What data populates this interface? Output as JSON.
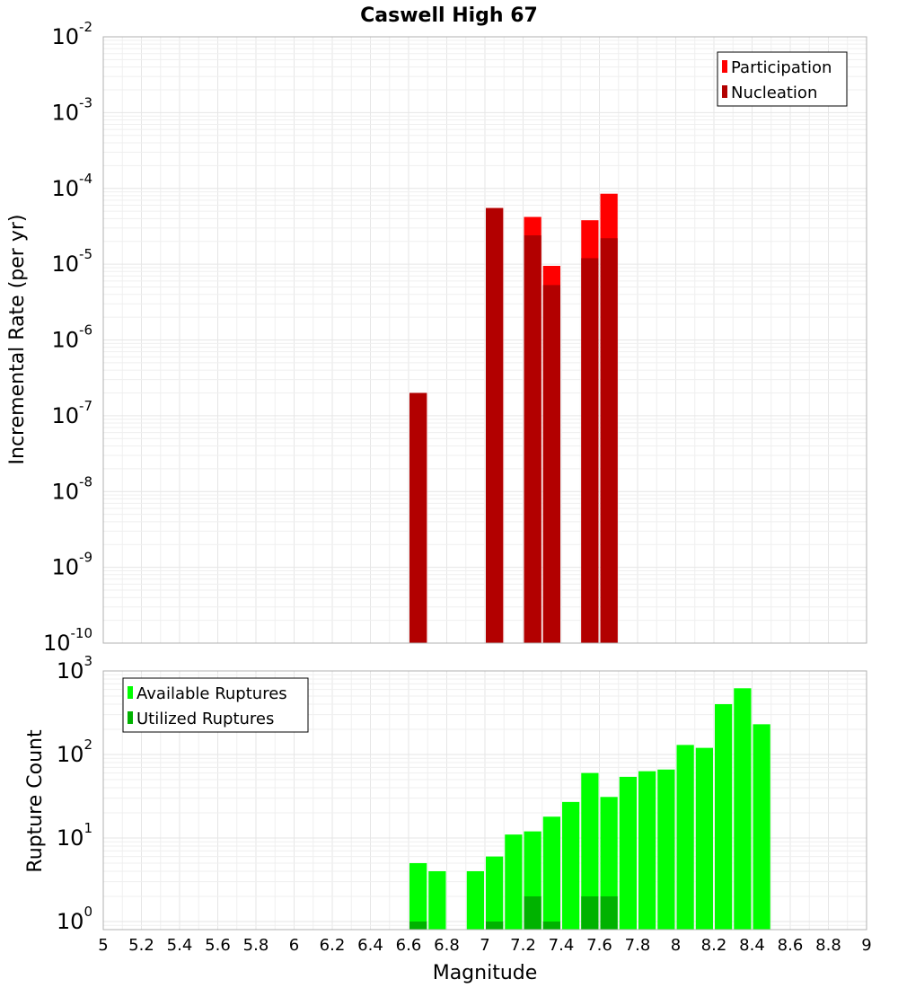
{
  "chart_data": [
    {
      "type": "bar",
      "title": "Caswell High 67",
      "xlabel": "",
      "ylabel": "Incremental Rate (per yr)",
      "yscale": "log",
      "ylim": [
        1e-10,
        0.01
      ],
      "xlim": [
        5,
        9
      ],
      "bin_width": 0.1,
      "grid": true,
      "legend_position": "top-right",
      "yticks": [
        {
          "base": "10",
          "exp": "-10"
        },
        {
          "base": "10",
          "exp": "-9"
        },
        {
          "base": "10",
          "exp": "-8"
        },
        {
          "base": "10",
          "exp": "-7"
        },
        {
          "base": "10",
          "exp": "-6"
        },
        {
          "base": "10",
          "exp": "-5"
        },
        {
          "base": "10",
          "exp": "-4"
        },
        {
          "base": "10",
          "exp": "-3"
        },
        {
          "base": "10",
          "exp": "-2"
        }
      ],
      "series": [
        {
          "name": "Participation",
          "color": "#ff0000",
          "x": [
            6.65,
            7.05,
            7.25,
            7.35,
            7.55,
            7.65
          ],
          "values": [
            2e-07,
            5.5e-05,
            4.2e-05,
            9.5e-06,
            3.8e-05,
            8.5e-05
          ]
        },
        {
          "name": "Nucleation",
          "color": "#b20000",
          "x": [
            6.65,
            7.05,
            7.25,
            7.35,
            7.55,
            7.65
          ],
          "values": [
            2e-07,
            5.5e-05,
            2.4e-05,
            5.3e-06,
            1.2e-05,
            2.2e-05
          ]
        }
      ]
    },
    {
      "type": "bar",
      "title": "",
      "xlabel": "Magnitude",
      "ylabel": "Rupture Count",
      "yscale": "log",
      "ylim": [
        0.8,
        1000
      ],
      "xlim": [
        5,
        9
      ],
      "bin_width": 0.1,
      "grid": true,
      "legend_position": "top-left",
      "yticks": [
        {
          "base": "10",
          "exp": "0"
        },
        {
          "base": "10",
          "exp": "1"
        },
        {
          "base": "10",
          "exp": "2"
        },
        {
          "base": "10",
          "exp": "3"
        }
      ],
      "xticks": [
        "5",
        "5.2",
        "5.4",
        "5.6",
        "5.8",
        "6",
        "6.2",
        "6.4",
        "6.6",
        "6.8",
        "7",
        "7.2",
        "7.4",
        "7.6",
        "7.8",
        "8",
        "8.2",
        "8.4",
        "8.6",
        "8.8",
        "9"
      ],
      "series": [
        {
          "name": "Available Ruptures",
          "color": "#00ff00",
          "x": [
            6.65,
            6.75,
            6.95,
            7.05,
            7.15,
            7.25,
            7.35,
            7.45,
            7.55,
            7.65,
            7.75,
            7.85,
            7.95,
            8.05,
            8.15,
            8.25,
            8.35,
            8.45
          ],
          "values": [
            5,
            4,
            4,
            6,
            11,
            12,
            18,
            27,
            60,
            31,
            54,
            63,
            66,
            130,
            120,
            400,
            620,
            230
          ]
        },
        {
          "name": "Utilized Ruptures",
          "color": "#00b200",
          "x": [
            6.65,
            7.05,
            7.25,
            7.35,
            7.55,
            7.65
          ],
          "values": [
            1,
            1,
            2,
            1,
            2,
            2
          ]
        }
      ]
    }
  ]
}
